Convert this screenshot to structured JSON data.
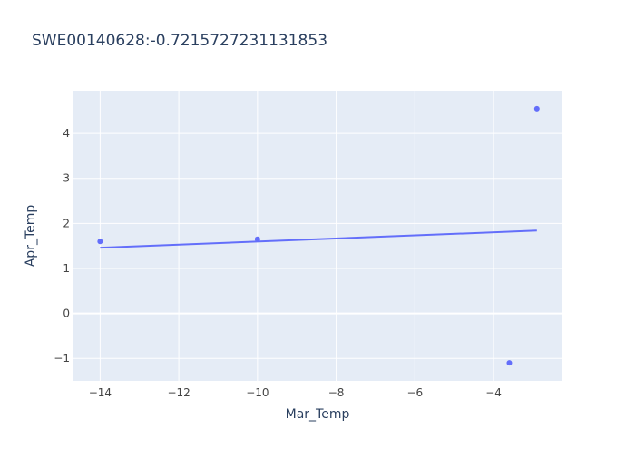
{
  "chart_data": {
    "type": "scatter",
    "title": "SWE00140628:-0.7215727231131853",
    "xlabel": "Mar_Temp",
    "ylabel": "Apr_Temp",
    "xlim": [
      -14.7,
      -2.25
    ],
    "ylim": [
      -1.5,
      4.95
    ],
    "xticks": [
      -14,
      -12,
      -10,
      -8,
      -6,
      -4
    ],
    "yticks": [
      -1,
      0,
      1,
      2,
      3,
      4
    ],
    "xtick_labels": [
      "−14",
      "−12",
      "−10",
      "−8",
      "−6",
      "−4"
    ],
    "ytick_labels": [
      "−1",
      "0",
      "1",
      "2",
      "3",
      "4"
    ],
    "grid": true,
    "legend": false,
    "colors": {
      "plot_background": "#E5ECF6",
      "grid": "#ffffff",
      "series": "#636EFA",
      "text": "#2a3f5f",
      "tick_text": "#444444"
    },
    "series": [
      {
        "mode": "markers",
        "x": [
          -14.0,
          -10.0,
          -3.6,
          -2.9
        ],
        "y": [
          1.6,
          1.65,
          -1.1,
          4.55
        ]
      },
      {
        "mode": "lines",
        "x": [
          -14.0,
          -2.9
        ],
        "y": [
          1.46,
          1.84
        ]
      }
    ]
  }
}
